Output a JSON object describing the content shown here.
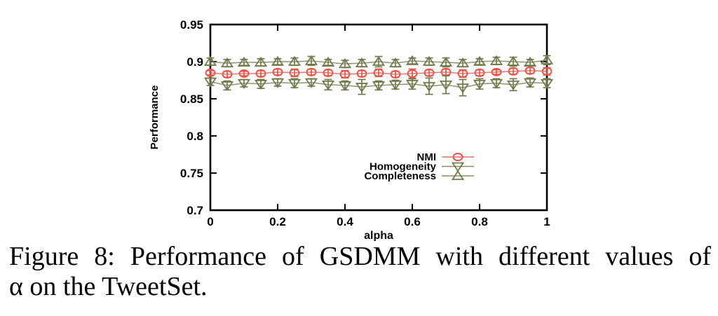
{
  "page": {
    "background": "#ffffff"
  },
  "chart_data": {
    "type": "line",
    "title": "",
    "xlabel": "alpha",
    "ylabel": "Performance",
    "xlim": [
      0,
      1
    ],
    "ylim": [
      0.7,
      0.95
    ],
    "grid": false,
    "error_bars": true,
    "axis_color": "#000000",
    "x_ticks": {
      "values": [
        0,
        0.2,
        0.4,
        0.6,
        0.8,
        1
      ],
      "labels": [
        "0",
        "0.2",
        "0.4",
        "0.6",
        "0.8",
        "1"
      ]
    },
    "y_ticks": {
      "values": [
        0.7,
        0.75,
        0.8,
        0.85,
        0.9,
        0.95
      ],
      "labels": [
        "0.7",
        "0.75",
        "0.8",
        "0.85",
        "0.9",
        "0.95"
      ]
    },
    "legend": {
      "position": "inside-bottom-center",
      "entries": [
        "NMI",
        "Homogeneity",
        "Completeness"
      ]
    },
    "x": [
      0,
      0.05,
      0.1,
      0.15,
      0.2,
      0.25,
      0.3,
      0.35,
      0.4,
      0.45,
      0.5,
      0.55,
      0.6,
      0.65,
      0.7,
      0.75,
      0.8,
      0.85,
      0.9,
      0.95,
      1
    ],
    "series": [
      {
        "name": "NMI",
        "marker": "circle",
        "color": "#e9554a",
        "values": [
          0.885,
          0.883,
          0.884,
          0.884,
          0.886,
          0.885,
          0.886,
          0.885,
          0.883,
          0.884,
          0.885,
          0.883,
          0.884,
          0.885,
          0.886,
          0.884,
          0.885,
          0.886,
          0.887,
          0.888,
          0.887
        ],
        "errors": [
          0.003,
          0.004,
          0.003,
          0.004,
          0.004,
          0.005,
          0.004,
          0.004,
          0.005,
          0.004,
          0.005,
          0.004,
          0.006,
          0.004,
          0.004,
          0.005,
          0.004,
          0.003,
          0.004,
          0.004,
          0.005
        ]
      },
      {
        "name": "Homogeneity",
        "marker": "triangle-down",
        "color": "#6e7c4c",
        "values": [
          0.873,
          0.868,
          0.871,
          0.87,
          0.872,
          0.871,
          0.872,
          0.869,
          0.868,
          0.866,
          0.868,
          0.869,
          0.87,
          0.867,
          0.869,
          0.865,
          0.87,
          0.871,
          0.869,
          0.872,
          0.871
        ],
        "errors": [
          0.005,
          0.006,
          0.005,
          0.006,
          0.005,
          0.006,
          0.005,
          0.007,
          0.006,
          0.01,
          0.006,
          0.006,
          0.007,
          0.011,
          0.012,
          0.011,
          0.007,
          0.006,
          0.008,
          0.006,
          0.006
        ]
      },
      {
        "name": "Completeness",
        "marker": "triangle-up",
        "color": "#6e7c4c",
        "values": [
          0.9,
          0.898,
          0.899,
          0.899,
          0.9,
          0.9,
          0.901,
          0.899,
          0.897,
          0.898,
          0.9,
          0.898,
          0.901,
          0.9,
          0.899,
          0.898,
          0.9,
          0.901,
          0.9,
          0.899,
          0.902
        ],
        "errors": [
          0.005,
          0.005,
          0.004,
          0.005,
          0.004,
          0.005,
          0.006,
          0.004,
          0.005,
          0.005,
          0.007,
          0.005,
          0.004,
          0.005,
          0.006,
          0.005,
          0.004,
          0.005,
          0.006,
          0.004,
          0.006
        ]
      }
    ]
  },
  "caption": {
    "lines": [
      "Figure 8: Performance of GSDMM with different values of",
      "α on the TweetSet."
    ]
  }
}
